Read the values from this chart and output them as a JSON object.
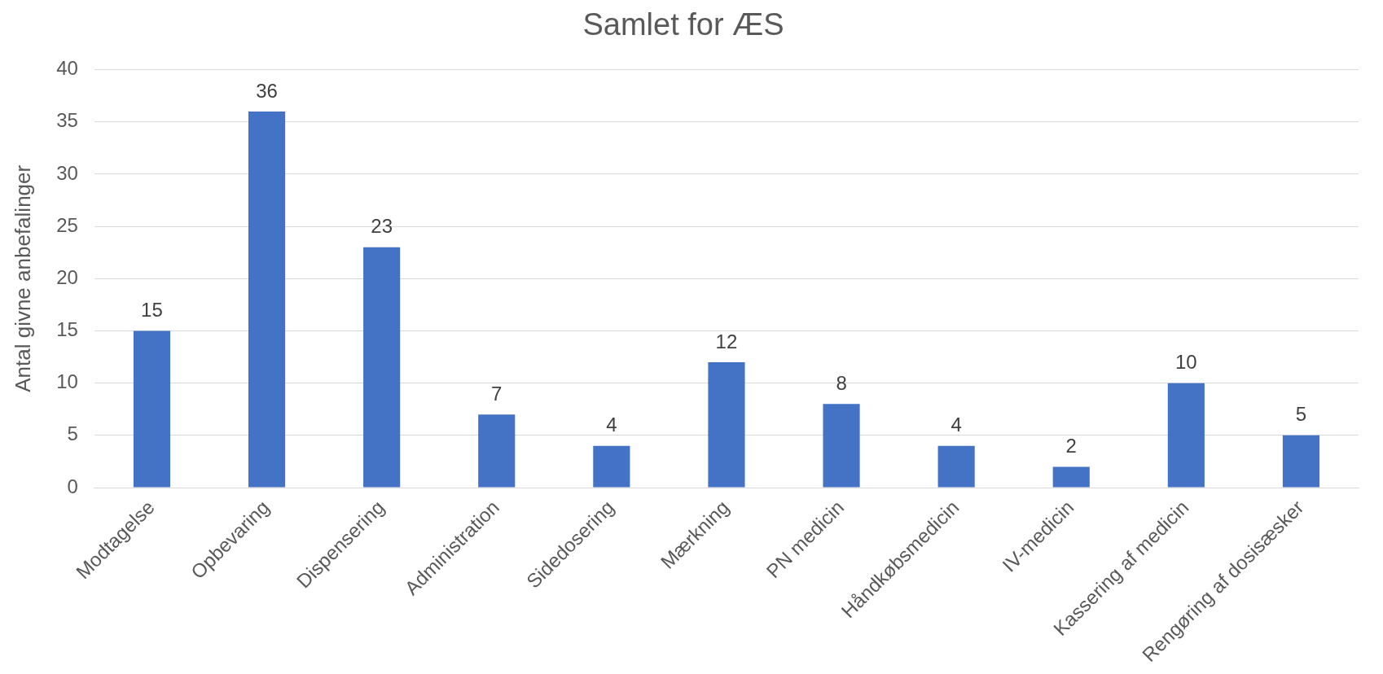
{
  "chart_data": {
    "type": "bar",
    "title": "Samlet for ÆS",
    "ylabel": "Antal givne anbefalinger",
    "categories": [
      "Modtagelse",
      "Opbevaring",
      "Dispensering",
      "Administration",
      "Sidedosering",
      "Mærkning",
      "PN medicin",
      "Håndkøbsmedicin",
      "IV-medicin",
      "Kassering af medicin",
      "Rengøring af dosisæsker"
    ],
    "values": [
      15,
      36,
      23,
      7,
      4,
      12,
      8,
      4,
      2,
      10,
      5
    ],
    "color": "#4472c4",
    "ylim": [
      0,
      40
    ],
    "yticks": [
      0,
      5,
      10,
      15,
      20,
      25,
      30,
      35,
      40
    ],
    "grid": "y",
    "data_labels": true
  }
}
